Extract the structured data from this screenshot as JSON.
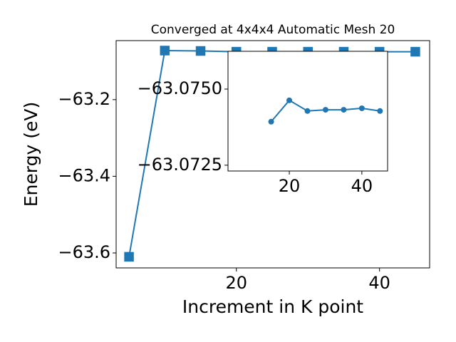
{
  "chart_data": [
    {
      "type": "line",
      "title": "Converged at 4x4x4 Automatic Mesh 20",
      "x_label": "Increment in K point",
      "y_label": "Energy (eV)",
      "x": [
        5,
        10,
        15,
        20,
        25,
        30,
        35,
        40,
        45
      ],
      "series": [
        {
          "color": "#1f77b4",
          "marker": "square",
          "values": [
            -63.61,
            -63.072,
            -63.073,
            -63.075,
            -63.075,
            -63.075,
            -63.075,
            -63.075,
            -63.075
          ]
        }
      ],
      "xlim": [
        3.2,
        47
      ],
      "ylim": [
        -63.639,
        -63.046
      ],
      "xticks": [
        20,
        40
      ],
      "yticks": [
        {
          "value": -63.6,
          "label": "−63.6"
        },
        {
          "value": -63.4,
          "label": "−63.4"
        },
        {
          "value": -63.2,
          "label": "−63.2"
        }
      ]
    },
    {
      "type": "line",
      "x": [
        15,
        20,
        25,
        30,
        35,
        40,
        45
      ],
      "series": [
        {
          "color": "#1f77b4",
          "marker": "circle",
          "values": [
            -63.07393,
            -63.07463,
            -63.07428,
            -63.07432,
            -63.07432,
            -63.07437,
            -63.07428
          ]
        }
      ],
      "xlim": [
        3.1,
        47.1
      ],
      "ylim": [
        -63.07231,
        -63.07624
      ],
      "xticks": [
        20,
        40
      ],
      "yticks": [
        {
          "value": -63.075,
          "label": "−63.0750"
        },
        {
          "value": -63.0725,
          "label": "−63.0725"
        }
      ]
    }
  ]
}
